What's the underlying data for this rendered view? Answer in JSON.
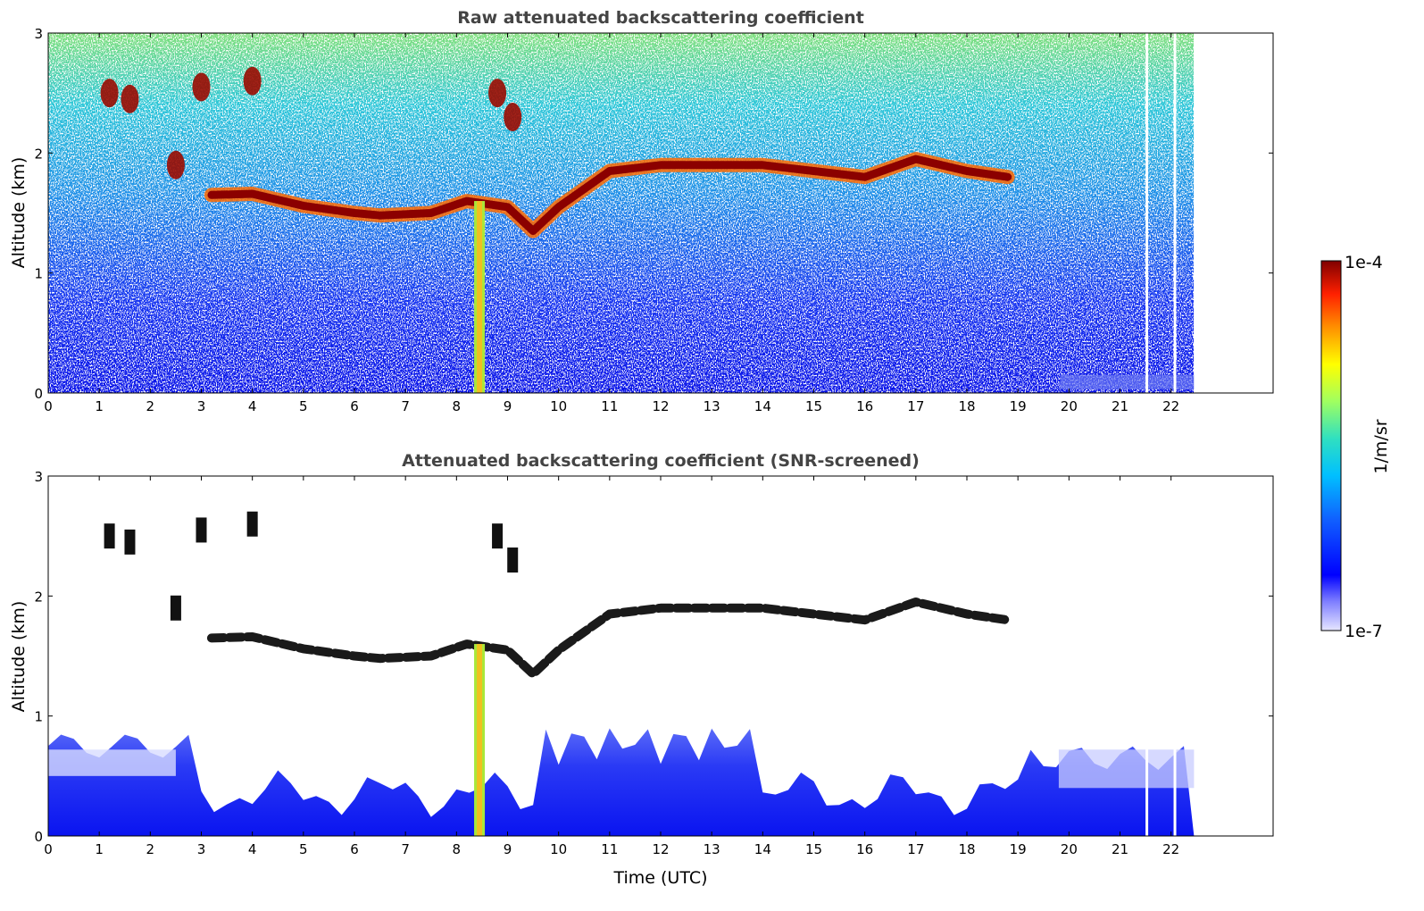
{
  "chart_data": [
    {
      "type": "heatmap",
      "title": "Raw attenuated backscattering coefficient",
      "xlabel": "",
      "ylabel": "Altitude (km)",
      "xlim": [
        0,
        24
      ],
      "ylim": [
        0,
        3
      ],
      "x_ticks": [
        0,
        1,
        2,
        3,
        4,
        5,
        6,
        7,
        8,
        9,
        10,
        11,
        12,
        13,
        14,
        15,
        16,
        17,
        18,
        19,
        20,
        21,
        22
      ],
      "y_ticks": [
        0,
        1,
        2,
        3
      ],
      "data_end_time": 22.45,
      "grid": false,
      "features": {
        "cloud_layer_km": [
          [
            3.2,
            1.65
          ],
          [
            4.0,
            1.66
          ],
          [
            5.0,
            1.56
          ],
          [
            6.0,
            1.5
          ],
          [
            6.5,
            1.48
          ],
          [
            7.5,
            1.5
          ],
          [
            8.2,
            1.6
          ],
          [
            9.0,
            1.55
          ],
          [
            9.5,
            1.35
          ],
          [
            10.0,
            1.55
          ],
          [
            11.0,
            1.85
          ],
          [
            12.0,
            1.9
          ],
          [
            13.0,
            1.9
          ],
          [
            14.0,
            1.9
          ],
          [
            15.0,
            1.85
          ],
          [
            16.0,
            1.8
          ],
          [
            17.0,
            1.95
          ],
          [
            18.0,
            1.85
          ],
          [
            18.8,
            1.8
          ]
        ],
        "upper_cloud_km": [
          [
            1.2,
            2.5
          ],
          [
            1.6,
            2.45
          ],
          [
            2.5,
            1.9
          ],
          [
            3.0,
            2.55
          ],
          [
            4.0,
            2.6
          ],
          [
            8.8,
            2.5
          ],
          [
            9.1,
            2.3
          ]
        ],
        "precipitation_band_utc": 8.45
      }
    },
    {
      "type": "heatmap",
      "title": "Attenuated backscattering coefficient (SNR-screened)",
      "xlabel": "Time (UTC)",
      "ylabel": "Altitude (km)",
      "xlim": [
        0,
        24
      ],
      "ylim": [
        0,
        3
      ],
      "x_ticks": [
        0,
        1,
        2,
        3,
        4,
        5,
        6,
        7,
        8,
        9,
        10,
        11,
        12,
        13,
        14,
        15,
        16,
        17,
        18,
        19,
        20,
        21,
        22
      ],
      "y_ticks": [
        0,
        1,
        2,
        3
      ],
      "data_end_time": 22.45,
      "grid": false,
      "colorbar": {
        "label": "1/m/sr",
        "max_label": "1e-4",
        "min_label": "1e-7",
        "scale": "log",
        "colormap": "jet"
      }
    }
  ]
}
